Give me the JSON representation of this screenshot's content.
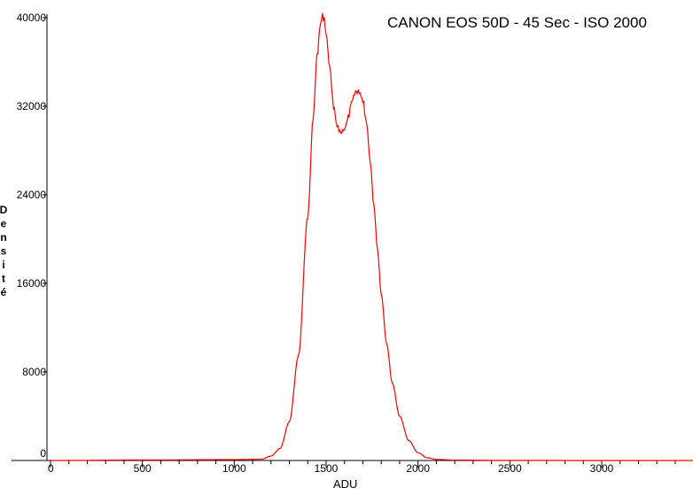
{
  "chart_data": {
    "type": "line",
    "title": "CANON EOS 50D - 45 Sec - ISO 2000",
    "xlabel": "ADU",
    "ylabel": "Densité",
    "xlim": [
      0,
      3500
    ],
    "ylim": [
      0,
      40000
    ],
    "x_ticks": [
      0,
      500,
      1000,
      1500,
      2000,
      2500,
      3000
    ],
    "y_ticks": [
      0,
      8000,
      16000,
      24000,
      32000,
      40000
    ],
    "grid": false,
    "series": [
      {
        "color": "#ff0000",
        "x": [
          0,
          500,
          1000,
          1150,
          1200,
          1250,
          1300,
          1350,
          1400,
          1430,
          1450,
          1470,
          1480,
          1490,
          1500,
          1520,
          1540,
          1560,
          1580,
          1600,
          1620,
          1640,
          1660,
          1680,
          1700,
          1720,
          1740,
          1760,
          1780,
          1800,
          1830,
          1860,
          1900,
          1950,
          2000,
          2050,
          2100,
          2200,
          2500,
          3000,
          3500
        ],
        "y": [
          0,
          50,
          80,
          120,
          400,
          1100,
          3500,
          9500,
          22000,
          31000,
          36500,
          39500,
          40200,
          39800,
          38500,
          35500,
          32000,
          30200,
          29600,
          29900,
          31000,
          32500,
          33300,
          33300,
          32500,
          30500,
          27000,
          23000,
          19000,
          15000,
          10500,
          7000,
          4000,
          1800,
          700,
          250,
          100,
          40,
          10,
          0,
          0
        ]
      }
    ]
  }
}
